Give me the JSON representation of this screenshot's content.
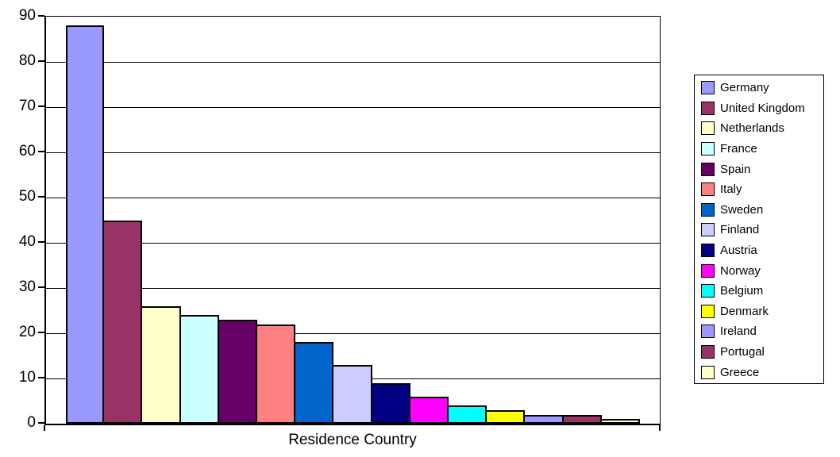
{
  "chart_data": {
    "type": "bar",
    "title": "",
    "xlabel": "Residence Country",
    "ylabel": "",
    "ylim": [
      0,
      90
    ],
    "yticks": [
      0,
      10,
      20,
      30,
      40,
      50,
      60,
      70,
      80,
      90
    ],
    "grid": true,
    "legend_position": "right",
    "categories": [
      "Germany",
      "United Kingdom",
      "Netherlands",
      "France",
      "Spain",
      "Italy",
      "Sweden",
      "Finland",
      "Austria",
      "Norway",
      "Belgium",
      "Denmark",
      "Ireland",
      "Portugal",
      "Greece"
    ],
    "values": [
      88,
      45,
      26,
      24,
      23,
      22,
      18,
      13,
      9,
      6,
      4,
      3,
      2,
      2,
      1
    ],
    "colors": [
      "#9999FF",
      "#993366",
      "#FFFFCC",
      "#CCFFFF",
      "#660066",
      "#FF8080",
      "#0066CC",
      "#CCCCFF",
      "#000080",
      "#FF00FF",
      "#00FFFF",
      "#FFFF00",
      "#9999FF",
      "#993366",
      "#FFFFCC"
    ]
  },
  "style_colors": {
    "axis": "#000000",
    "gridline": "#000000",
    "background": "#FFFFFF",
    "bar_border": "#000000"
  }
}
